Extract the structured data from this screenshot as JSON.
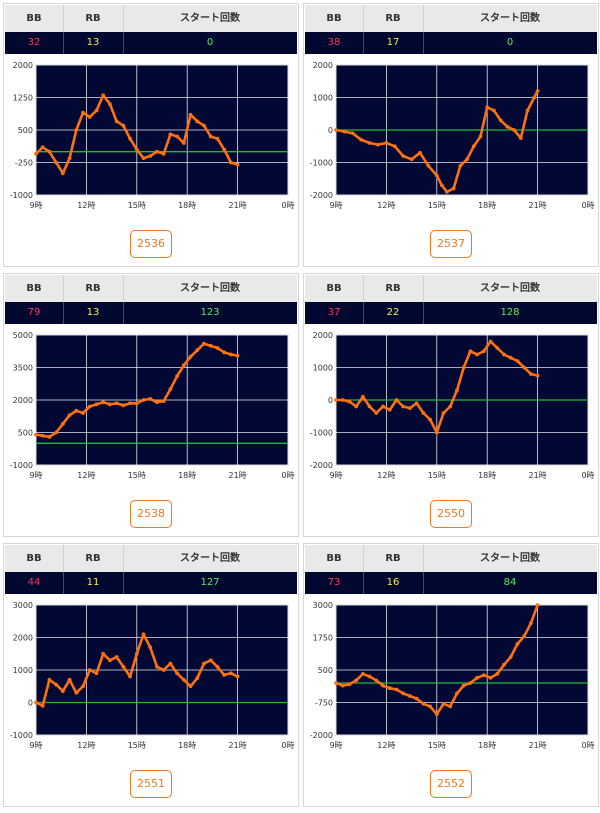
{
  "headers": {
    "bb": "BB",
    "rb": "RB",
    "start": "スタート回数"
  },
  "colors": {
    "bb": "#ff3355",
    "rb": "#ffee33",
    "start": "#55ee55",
    "line": "#ff7010",
    "zero": "#22bb33",
    "plot_bg": "#000833",
    "grid": "#ffffff",
    "button": "#f07820"
  },
  "machines": [
    {
      "id": "2536",
      "bb": "32",
      "rb": "13",
      "start": "0"
    },
    {
      "id": "2537",
      "bb": "38",
      "rb": "17",
      "start": "0"
    },
    {
      "id": "2538",
      "bb": "79",
      "rb": "13",
      "start": "123"
    },
    {
      "id": "2550",
      "bb": "37",
      "rb": "22",
      "start": "128"
    },
    {
      "id": "2551",
      "bb": "44",
      "rb": "11",
      "start": "127"
    },
    {
      "id": "2552",
      "bb": "73",
      "rb": "16",
      "start": "84"
    }
  ],
  "chart_data": [
    {
      "type": "line",
      "series": [
        {
          "color": "#ff7010"
        }
      ],
      "x_ticks": [
        "9時",
        "12時",
        "15時",
        "18時",
        "21時",
        "0時"
      ],
      "xlim": [
        9,
        24
      ],
      "y_ticks": [
        "2000",
        "1250",
        "500",
        "-250",
        "-1000"
      ],
      "y_tick_values": [
        2000,
        1250,
        500,
        -250,
        -1000
      ],
      "ylim": [
        -1000,
        2000
      ],
      "x": [
        9,
        9.4,
        9.8,
        10.2,
        10.6,
        11,
        11.4,
        11.8,
        12.2,
        12.6,
        13,
        13.4,
        13.8,
        14.2,
        14.6,
        15,
        15.4,
        15.8,
        16.2,
        16.6,
        17,
        17.4,
        17.8,
        18.2,
        18.6,
        19,
        19.4,
        19.8,
        20.2,
        20.6,
        21
      ],
      "y": [
        -50,
        100,
        0,
        -250,
        -500,
        -150,
        500,
        900,
        800,
        950,
        1300,
        1100,
        700,
        600,
        300,
        50,
        -150,
        -100,
        0,
        -50,
        400,
        350,
        200,
        850,
        700,
        600,
        350,
        300,
        50,
        -250,
        -300
      ]
    },
    {
      "type": "line",
      "series": [
        {
          "color": "#ff7010"
        }
      ],
      "x_ticks": [
        "9時",
        "12時",
        "15時",
        "18時",
        "21時",
        "0時"
      ],
      "xlim": [
        9,
        24
      ],
      "y_ticks": [
        "2000",
        "1000",
        "0",
        "-1000",
        "-2000"
      ],
      "y_tick_values": [
        2000,
        1000,
        0,
        -1000,
        -2000
      ],
      "ylim": [
        -2000,
        2000
      ],
      "x": [
        9,
        9.5,
        10,
        10.5,
        11,
        11.5,
        12,
        12.5,
        13,
        13.5,
        14,
        14.5,
        15,
        15.3,
        15.6,
        16,
        16.4,
        16.8,
        17.2,
        17.6,
        18,
        18.4,
        18.8,
        19.2,
        19.6,
        20,
        20.4,
        20.8,
        21
      ],
      "y": [
        0,
        -50,
        -100,
        -300,
        -400,
        -450,
        -400,
        -500,
        -800,
        -900,
        -700,
        -1100,
        -1400,
        -1700,
        -1900,
        -1800,
        -1100,
        -900,
        -500,
        -200,
        700,
        600,
        300,
        100,
        0,
        -250,
        600,
        1000,
        1200
      ]
    },
    {
      "type": "line",
      "series": [
        {
          "color": "#ff7010"
        }
      ],
      "x_ticks": [
        "9時",
        "12時",
        "15時",
        "18時",
        "21時",
        "0時"
      ],
      "xlim": [
        9,
        24
      ],
      "y_ticks": [
        "5000",
        "3500",
        "2000",
        "500",
        "-1000"
      ],
      "y_tick_values": [
        5000,
        3500,
        2000,
        500,
        -1000
      ],
      "ylim": [
        -1000,
        5000
      ],
      "x": [
        9,
        9.4,
        9.8,
        10.2,
        10.6,
        11,
        11.4,
        11.8,
        12.2,
        12.6,
        13,
        13.4,
        13.8,
        14.2,
        14.6,
        15,
        15.4,
        15.8,
        16.2,
        16.6,
        17,
        17.4,
        17.8,
        18.2,
        18.6,
        19,
        19.4,
        19.8,
        20.2,
        20.6,
        21
      ],
      "y": [
        400,
        350,
        300,
        500,
        900,
        1300,
        1500,
        1400,
        1700,
        1800,
        1900,
        1800,
        1850,
        1750,
        1850,
        1850,
        2000,
        2050,
        1900,
        1950,
        2500,
        3100,
        3600,
        4000,
        4300,
        4600,
        4500,
        4400,
        4200,
        4100,
        4050
      ]
    },
    {
      "type": "line",
      "series": [
        {
          "color": "#ff7010"
        }
      ],
      "x_ticks": [
        "9時",
        "12時",
        "15時",
        "18時",
        "21時",
        "0時"
      ],
      "xlim": [
        9,
        24
      ],
      "y_ticks": [
        "2000",
        "1000",
        "0",
        "-1000",
        "-2000"
      ],
      "y_tick_values": [
        2000,
        1000,
        0,
        -1000,
        -2000
      ],
      "ylim": [
        -2000,
        2000
      ],
      "x": [
        9,
        9.4,
        9.8,
        10.2,
        10.6,
        11,
        11.4,
        11.8,
        12.2,
        12.6,
        13,
        13.4,
        13.8,
        14.2,
        14.6,
        15,
        15.4,
        15.8,
        16.2,
        16.6,
        17,
        17.4,
        17.8,
        18.2,
        18.6,
        19,
        19.4,
        19.8,
        20.2,
        20.6,
        21
      ],
      "y": [
        0,
        0,
        -50,
        -200,
        100,
        -200,
        -400,
        -200,
        -300,
        0,
        -200,
        -250,
        -100,
        -400,
        -600,
        -1000,
        -400,
        -200,
        300,
        1000,
        1500,
        1400,
        1500,
        1800,
        1600,
        1400,
        1300,
        1200,
        1000,
        800,
        750
      ]
    },
    {
      "type": "line",
      "series": [
        {
          "color": "#ff7010"
        }
      ],
      "x_ticks": [
        "9時",
        "12時",
        "15時",
        "18時",
        "21時",
        "0時"
      ],
      "xlim": [
        9,
        24
      ],
      "y_ticks": [
        "3000",
        "2000",
        "1000",
        "0",
        "-1000"
      ],
      "y_tick_values": [
        3000,
        2000,
        1000,
        0,
        -1000
      ],
      "ylim": [
        -1000,
        3000
      ],
      "x": [
        9,
        9.4,
        9.8,
        10.2,
        10.6,
        11,
        11.4,
        11.8,
        12.2,
        12.6,
        13,
        13.4,
        13.8,
        14.2,
        14.6,
        15,
        15.4,
        15.8,
        16.2,
        16.6,
        17,
        17.4,
        17.8,
        18.2,
        18.6,
        19,
        19.4,
        19.8,
        20.2,
        20.6,
        21
      ],
      "y": [
        0,
        -100,
        700,
        550,
        350,
        700,
        300,
        500,
        1000,
        900,
        1500,
        1300,
        1400,
        1100,
        800,
        1500,
        2100,
        1700,
        1100,
        1000,
        1200,
        900,
        700,
        500,
        750,
        1200,
        1300,
        1100,
        850,
        900,
        800
      ]
    },
    {
      "type": "line",
      "series": [
        {
          "color": "#ff7010"
        }
      ],
      "x_ticks": [
        "9時",
        "12時",
        "15時",
        "18時",
        "21時",
        "0時"
      ],
      "xlim": [
        9,
        24
      ],
      "y_ticks": [
        "3000",
        "1750",
        "500",
        "-750",
        "-2000"
      ],
      "y_tick_values": [
        3000,
        1750,
        500,
        -750,
        -2000
      ],
      "ylim": [
        -2000,
        3000
      ],
      "x": [
        9,
        9.4,
        9.8,
        10.2,
        10.6,
        11,
        11.4,
        11.8,
        12.2,
        12.6,
        13,
        13.4,
        13.8,
        14.2,
        14.6,
        15,
        15.4,
        15.8,
        16.2,
        16.6,
        17,
        17.4,
        17.8,
        18.2,
        18.6,
        19,
        19.4,
        19.8,
        20.2,
        20.6,
        21
      ],
      "y": [
        0,
        -100,
        -50,
        100,
        350,
        250,
        100,
        -100,
        -200,
        -250,
        -400,
        -500,
        -600,
        -800,
        -900,
        -1200,
        -800,
        -900,
        -400,
        -100,
        0,
        200,
        300,
        200,
        350,
        700,
        1000,
        1500,
        1800,
        2300,
        3000
      ]
    }
  ]
}
